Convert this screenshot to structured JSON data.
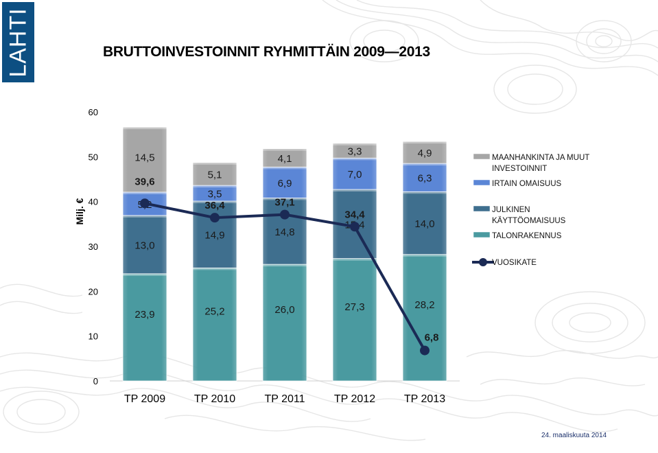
{
  "logo": {
    "text": "LAHTI"
  },
  "footer": {
    "date": "24. maaliskuuta 2014"
  },
  "chart_data": {
    "type": "bar",
    "stacked": true,
    "title": "BRUTTOINVESTOINNIT RYHMITTÄIN 2009—2013",
    "ylabel": "Milj. €",
    "xlabel": "",
    "ylim": [
      0,
      60
    ],
    "yticks": [
      0,
      10,
      20,
      30,
      40,
      50,
      60
    ],
    "grid": false,
    "legend_position": "right",
    "categories": [
      "TP 2009",
      "TP 2010",
      "TP 2011",
      "TP 2012",
      "TP 2013"
    ],
    "series": [
      {
        "name": "TALONRAKENNUS",
        "values": [
          23.9,
          25.2,
          26.0,
          27.3,
          28.2
        ],
        "labels": [
          "23,9",
          "25,2",
          "26,0",
          "27,3",
          "28,2"
        ],
        "color": "#4a9aa0"
      },
      {
        "name": "JULKINEN KÄYTTÖOMAISUUS",
        "values": [
          13.0,
          14.9,
          14.8,
          15.4,
          14.0
        ],
        "labels": [
          "13,0",
          "14,9",
          "14,8",
          "15,4",
          "14,0"
        ],
        "color": "#3f6f8e"
      },
      {
        "name": "IRTAIN OMAISUUS",
        "values": [
          5.2,
          3.5,
          6.9,
          7.0,
          6.3
        ],
        "labels": [
          "5,2",
          "3,5",
          "6,9",
          "7,0",
          "6,3"
        ],
        "color": "#5b86d6"
      },
      {
        "name": "MAANHANKINTA JA MUUT INVESTOINNIT",
        "values": [
          14.5,
          5.1,
          4.1,
          3.3,
          4.9
        ],
        "labels": [
          "14,5",
          "5,1",
          "4,1",
          "3,3",
          "4,9"
        ],
        "color": "#a6a6a6"
      }
    ],
    "line_series": {
      "name": "VUOSIKATE",
      "values": [
        39.6,
        36.4,
        37.1,
        34.4,
        6.8
      ],
      "labels": [
        "39,6",
        "36,4",
        "37,1",
        "34,4",
        "6,8"
      ],
      "color": "#1b2a55"
    },
    "legend_entries": [
      {
        "lines": [
          "MAANHANKINTA JA MUUT",
          "INVESTOINNIT"
        ],
        "kind": "bar",
        "color": "#a6a6a6"
      },
      {
        "lines": [
          "IRTAIN OMAISUUS"
        ],
        "kind": "bar",
        "color": "#5b86d6"
      },
      {
        "lines": [
          "JULKINEN",
          "KÄYTTÖOMAISUUS"
        ],
        "kind": "bar",
        "color": "#3f6f8e"
      },
      {
        "lines": [
          "TALONRAKENNUS"
        ],
        "kind": "bar",
        "color": "#4a9aa0"
      },
      {
        "lines": [
          "VUOSIKATE"
        ],
        "kind": "line",
        "color": "#1b2a55"
      }
    ]
  }
}
